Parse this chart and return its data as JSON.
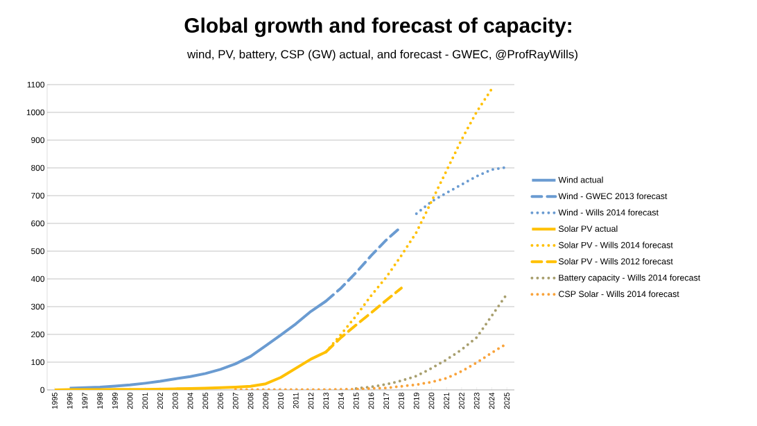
{
  "chart_data": {
    "type": "line",
    "title": "Global growth and forecast of capacity:",
    "subtitle": "wind, PV, battery, CSP (GW) actual, and forecast - GWEC, @ProfRayWills)",
    "categories": [
      "1995",
      "1996",
      "1997",
      "1998",
      "1999",
      "2000",
      "2001",
      "2002",
      "2003",
      "2004",
      "2005",
      "2006",
      "2007",
      "2008",
      "2009",
      "2010",
      "2011",
      "2012",
      "2013",
      "2014",
      "2015",
      "2016",
      "2017",
      "2018",
      "2019",
      "2020",
      "2021",
      "2022",
      "2023",
      "2024",
      "2025"
    ],
    "ylim": [
      0,
      1100
    ],
    "yticks": [
      0,
      100,
      200,
      300,
      400,
      500,
      600,
      700,
      800,
      900,
      1000,
      1100
    ],
    "grid": "y",
    "legend": "right",
    "series": [
      {
        "name": "Wind actual",
        "color": "#6a9bd1",
        "line_style": "solid",
        "values": [
          null,
          6,
          8,
          10,
          14,
          18,
          24,
          31,
          40,
          48,
          59,
          74,
          94,
          121,
          159,
          198,
          238,
          283,
          320,
          null,
          null,
          null,
          null,
          null,
          null,
          null,
          null,
          null,
          null,
          null,
          null
        ]
      },
      {
        "name": "Wind - GWEC 2013 forecast",
        "color": "#6a9bd1",
        "line_style": "dashed",
        "values": [
          null,
          null,
          null,
          null,
          null,
          null,
          null,
          null,
          null,
          null,
          null,
          null,
          null,
          null,
          null,
          null,
          null,
          null,
          320,
          367,
          423,
          484,
          540,
          588,
          null,
          null,
          null,
          null,
          null,
          null,
          null
        ]
      },
      {
        "name": "Wind - Wills 2014 forecast",
        "color": "#6a9bd1",
        "line_style": "dotted",
        "values": [
          null,
          null,
          null,
          null,
          null,
          null,
          null,
          null,
          null,
          null,
          null,
          null,
          null,
          null,
          null,
          null,
          null,
          null,
          null,
          null,
          null,
          null,
          null,
          null,
          635,
          679,
          710,
          740,
          770,
          794,
          802
        ]
      },
      {
        "name": "Solar PV actual",
        "color": "#ffc000",
        "line_style": "solid",
        "values": [
          0,
          1,
          1,
          1,
          2,
          2,
          2,
          3,
          4,
          5,
          6,
          8,
          10,
          13,
          22,
          45,
          78,
          111,
          137,
          null,
          null,
          null,
          null,
          null,
          null,
          null,
          null,
          null,
          null,
          null,
          null
        ]
      },
      {
        "name": "Solar PV - Wills 2014 forecast",
        "color": "#ffc000",
        "line_style": "dotted",
        "values": [
          null,
          null,
          null,
          null,
          null,
          null,
          null,
          null,
          null,
          null,
          null,
          null,
          null,
          null,
          null,
          null,
          null,
          null,
          137,
          200,
          267,
          340,
          406,
          484,
          568,
          679,
          790,
          902,
          1002,
          1085,
          null
        ]
      },
      {
        "name": "Solar PV - Wills 2012 forecast",
        "color": "#ffc000",
        "line_style": "dashed",
        "values": [
          null,
          null,
          null,
          null,
          null,
          null,
          null,
          null,
          null,
          null,
          null,
          null,
          null,
          null,
          null,
          null,
          null,
          null,
          137,
          189,
          234,
          278,
          323,
          367,
          null,
          null,
          null,
          null,
          null,
          null,
          null
        ]
      },
      {
        "name": "Battery capacity - Wills 2014 forecast",
        "color": "#a89f6e",
        "line_style": "dotted",
        "values": [
          null,
          null,
          null,
          null,
          null,
          null,
          null,
          null,
          null,
          null,
          null,
          null,
          null,
          null,
          null,
          null,
          null,
          null,
          null,
          null,
          5,
          11,
          20,
          33,
          50,
          78,
          109,
          145,
          189,
          267,
          345
        ]
      },
      {
        "name": "CSP Solar - Wills 2014 forecast",
        "color": "#f9a33b",
        "line_style": "dotted",
        "values": [
          null,
          null,
          null,
          null,
          null,
          null,
          null,
          null,
          null,
          null,
          null,
          null,
          1,
          1,
          1,
          1,
          1,
          1,
          1,
          2,
          3,
          5,
          7,
          13,
          19,
          28,
          42,
          67,
          98,
          134,
          167
        ]
      }
    ]
  }
}
